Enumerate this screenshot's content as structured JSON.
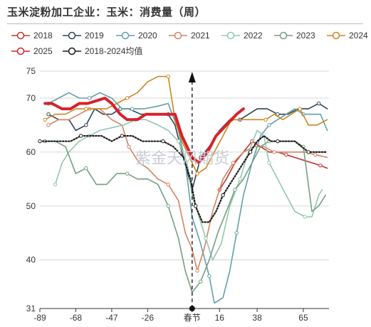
{
  "title": "玉米淀粉加工企业：玉米：消费量（周）",
  "watermark": "紫金天风期货",
  "chart_data": {
    "type": "line",
    "title": "玉米淀粉加工企业：玉米：消费量（周）",
    "xlabel": "",
    "ylabel": "",
    "x_ticks": [
      -89,
      -68,
      -47,
      -26,
      0,
      16,
      38,
      65
    ],
    "x_tick_labels": [
      "-89",
      "-68",
      "-47",
      "-26",
      "春节",
      "16",
      "38",
      "65"
    ],
    "xlim": [
      -89,
      80
    ],
    "y_ticks": [
      31,
      40,
      50,
      60,
      70,
      75
    ],
    "ylim": [
      31,
      75
    ],
    "grid": "horizontal",
    "legend_position": "top",
    "event_marker": {
      "label": "春节",
      "x": 0
    },
    "series": [
      {
        "name": "2018",
        "color": "#c23531",
        "marker": "circle",
        "style": "solid",
        "points": [
          [
            16,
            53
          ],
          [
            20,
            55
          ],
          [
            25,
            58
          ],
          [
            30,
            60
          ],
          [
            35,
            62
          ],
          [
            40,
            61
          ],
          [
            45,
            60
          ],
          [
            50,
            60
          ],
          [
            55,
            59.5
          ],
          [
            60,
            59
          ],
          [
            65,
            58.5
          ],
          [
            70,
            58
          ],
          [
            75,
            57.5
          ],
          [
            79,
            57
          ]
        ]
      },
      {
        "name": "2019",
        "color": "#2f4554",
        "marker": "circle",
        "style": "solid",
        "points": [
          [
            -84,
            67
          ],
          [
            -78,
            66
          ],
          [
            -72,
            66
          ],
          [
            -68,
            64
          ],
          [
            -62,
            65
          ],
          [
            -57,
            68
          ],
          [
            -52,
            67
          ],
          [
            -47,
            67
          ],
          [
            -42,
            68
          ],
          [
            -37,
            68
          ],
          [
            -30,
            67
          ],
          [
            -22,
            67
          ],
          [
            -14,
            67
          ],
          [
            -10,
            65
          ],
          [
            -6,
            60
          ],
          [
            0,
            53
          ],
          [
            5,
            59
          ],
          [
            10,
            61
          ],
          [
            16,
            64
          ],
          [
            22,
            66
          ],
          [
            28,
            66
          ],
          [
            33,
            67
          ],
          [
            38,
            68
          ],
          [
            44,
            68
          ],
          [
            50,
            67
          ],
          [
            56,
            67
          ],
          [
            62,
            68
          ],
          [
            68,
            68
          ],
          [
            74,
            69
          ],
          [
            79,
            68
          ]
        ]
      },
      {
        "name": "2020",
        "color": "#61a0a8",
        "marker": "circle",
        "style": "solid",
        "points": [
          [
            -84,
            69
          ],
          [
            -78,
            70
          ],
          [
            -72,
            71
          ],
          [
            -66,
            70
          ],
          [
            -60,
            70
          ],
          [
            -54,
            71
          ],
          [
            -47,
            70
          ],
          [
            -41,
            68
          ],
          [
            -35,
            68
          ],
          [
            -28,
            68
          ],
          [
            -20,
            68.5
          ],
          [
            -14,
            69
          ],
          [
            -8,
            64
          ],
          [
            -4,
            58
          ],
          [
            0,
            48
          ],
          [
            5,
            43
          ],
          [
            10,
            37
          ],
          [
            13,
            32
          ],
          [
            18,
            33
          ],
          [
            22,
            38
          ],
          [
            26,
            45
          ],
          [
            30,
            52
          ],
          [
            35,
            58
          ],
          [
            40,
            63
          ],
          [
            45,
            65
          ],
          [
            50,
            66
          ],
          [
            55,
            67
          ],
          [
            60,
            68
          ],
          [
            65,
            67
          ],
          [
            70,
            67
          ],
          [
            75,
            67
          ],
          [
            79,
            64
          ]
        ]
      },
      {
        "name": "2021",
        "color": "#d48265",
        "marker": "circle",
        "style": "solid",
        "points": [
          [
            -84,
            65
          ],
          [
            -78,
            66
          ],
          [
            -72,
            66
          ],
          [
            -66,
            67
          ],
          [
            -60,
            68
          ],
          [
            -54,
            68
          ],
          [
            -47,
            66
          ],
          [
            -41,
            65
          ],
          [
            -37,
            61
          ],
          [
            -31,
            58
          ],
          [
            -26,
            57
          ],
          [
            -20,
            55
          ],
          [
            -14,
            54
          ],
          [
            -8,
            51
          ],
          [
            -4,
            45
          ],
          [
            0,
            42
          ],
          [
            3,
            38
          ],
          [
            7,
            42
          ],
          [
            12,
            49
          ],
          [
            18,
            55
          ],
          [
            24,
            58
          ],
          [
            30,
            60
          ],
          [
            36,
            61
          ],
          [
            42,
            61
          ],
          [
            48,
            60
          ],
          [
            54,
            60
          ],
          [
            60,
            60
          ],
          [
            66,
            60
          ],
          [
            72,
            59.5
          ],
          [
            79,
            59
          ]
        ]
      },
      {
        "name": "2022",
        "color": "#91c7ae",
        "marker": "circle",
        "style": "solid",
        "points": [
          [
            -80,
            54
          ],
          [
            -76,
            58
          ],
          [
            -72,
            60
          ],
          [
            -66,
            62
          ],
          [
            -60,
            63
          ],
          [
            -54,
            64
          ],
          [
            -47,
            64.5
          ],
          [
            -40,
            65
          ],
          [
            -33,
            66
          ],
          [
            -27,
            66
          ],
          [
            -20,
            65
          ],
          [
            -14,
            64
          ],
          [
            -8,
            62
          ],
          [
            -3,
            58
          ],
          [
            0,
            52
          ],
          [
            4,
            48
          ],
          [
            8,
            44
          ],
          [
            12,
            40
          ],
          [
            17,
            43
          ],
          [
            22,
            50
          ],
          [
            28,
            55
          ],
          [
            33,
            60
          ],
          [
            38,
            64
          ],
          [
            42,
            63
          ],
          [
            45,
            58
          ],
          [
            50,
            55
          ],
          [
            55,
            52
          ],
          [
            60,
            49
          ],
          [
            66,
            48
          ],
          [
            70,
            48
          ],
          [
            74,
            52
          ],
          [
            76,
            53
          ]
        ]
      },
      {
        "name": "2023",
        "color": "#749f83",
        "marker": "circle",
        "style": "solid",
        "points": [
          [
            -86,
            62
          ],
          [
            -80,
            62
          ],
          [
            -74,
            61
          ],
          [
            -68,
            56
          ],
          [
            -62,
            57
          ],
          [
            -56,
            54
          ],
          [
            -50,
            54
          ],
          [
            -44,
            56
          ],
          [
            -38,
            56
          ],
          [
            -32,
            55
          ],
          [
            -26,
            55
          ],
          [
            -20,
            54
          ],
          [
            -14,
            50
          ],
          [
            -8,
            44
          ],
          [
            -4,
            38
          ],
          [
            0,
            34
          ],
          [
            5,
            36
          ],
          [
            10,
            40
          ],
          [
            15,
            45
          ],
          [
            20,
            49
          ],
          [
            25,
            53
          ],
          [
            30,
            55
          ],
          [
            35,
            58
          ],
          [
            40,
            61
          ],
          [
            45,
            62
          ],
          [
            50,
            62
          ],
          [
            55,
            62
          ],
          [
            60,
            62
          ],
          [
            65,
            61
          ],
          [
            70,
            49
          ],
          [
            74,
            50
          ],
          [
            78,
            52
          ]
        ]
      },
      {
        "name": "2024",
        "color": "#ca8622",
        "marker": "circle",
        "style": "solid",
        "points": [
          [
            -86,
            66
          ],
          [
            -80,
            67
          ],
          [
            -74,
            67
          ],
          [
            -68,
            68
          ],
          [
            -62,
            68
          ],
          [
            -56,
            68
          ],
          [
            -50,
            68
          ],
          [
            -44,
            69
          ],
          [
            -38,
            70
          ],
          [
            -32,
            71
          ],
          [
            -26,
            73
          ],
          [
            -20,
            74
          ],
          [
            -14,
            74
          ],
          [
            -10,
            66
          ],
          [
            -6,
            62
          ],
          [
            0,
            58
          ],
          [
            3,
            56
          ],
          [
            8,
            57
          ],
          [
            13,
            60
          ],
          [
            18,
            63
          ],
          [
            23,
            66
          ],
          [
            28,
            66
          ],
          [
            33,
            66
          ],
          [
            38,
            66
          ],
          [
            43,
            66
          ],
          [
            48,
            67
          ],
          [
            53,
            66
          ],
          [
            58,
            67
          ],
          [
            63,
            68
          ],
          [
            68,
            65
          ],
          [
            73,
            65
          ],
          [
            79,
            66
          ]
        ]
      },
      {
        "name": "2025",
        "color": "#d7222b",
        "marker": "circle",
        "style": "solid",
        "points": [
          [
            -86,
            69
          ],
          [
            -82,
            69
          ],
          [
            -76,
            68
          ],
          [
            -71,
            68
          ],
          [
            -66,
            69
          ],
          [
            -61,
            69
          ],
          [
            -56,
            69.5
          ],
          [
            -51,
            70
          ],
          [
            -47,
            69
          ],
          [
            -42,
            67
          ],
          [
            -38,
            66
          ],
          [
            -32,
            66
          ],
          [
            -27,
            67
          ],
          [
            -21,
            67
          ],
          [
            -16,
            67
          ],
          [
            -10,
            67
          ],
          [
            -6,
            63
          ],
          [
            0,
            59
          ],
          [
            4,
            58
          ],
          [
            9,
            60
          ],
          [
            14,
            63
          ],
          [
            20,
            65
          ],
          [
            26,
            67
          ],
          [
            30,
            68
          ]
        ]
      },
      {
        "name": "2018-2024均值",
        "color": "#1a1a1a",
        "marker": "circle",
        "style": "dotted",
        "points": [
          [
            -89,
            62
          ],
          [
            -83,
            62
          ],
          [
            -77,
            62
          ],
          [
            -71,
            62
          ],
          [
            -65,
            63
          ],
          [
            -59,
            63
          ],
          [
            -53,
            63
          ],
          [
            -47,
            62
          ],
          [
            -41,
            63
          ],
          [
            -35,
            63
          ],
          [
            -29,
            62
          ],
          [
            -23,
            62
          ],
          [
            -17,
            62
          ],
          [
            -11,
            61
          ],
          [
            -5,
            59
          ],
          [
            -1,
            55
          ],
          [
            2,
            50
          ],
          [
            6,
            47
          ],
          [
            10,
            47
          ],
          [
            14,
            49
          ],
          [
            18,
            52
          ],
          [
            22,
            54
          ],
          [
            26,
            56
          ],
          [
            30,
            58
          ],
          [
            34,
            60
          ],
          [
            38,
            62
          ],
          [
            42,
            63
          ],
          [
            46,
            62
          ],
          [
            50,
            62
          ],
          [
            55,
            62
          ],
          [
            60,
            62
          ],
          [
            64,
            61
          ],
          [
            68,
            60
          ],
          [
            72,
            60
          ],
          [
            76,
            60
          ],
          [
            79,
            60
          ]
        ]
      }
    ]
  }
}
